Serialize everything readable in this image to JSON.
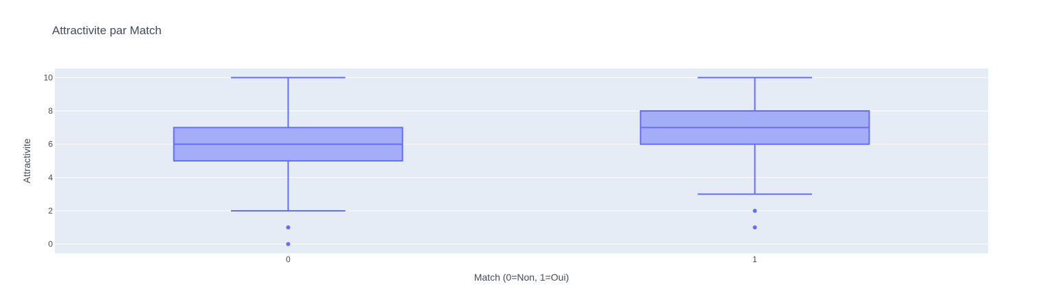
{
  "chart_data": {
    "type": "box",
    "title": "Attractivite par Match",
    "xlabel": "Match (0=Non, 1=Oui)",
    "ylabel": "Attractivite",
    "categories": [
      "0",
      "1"
    ],
    "ylim": [
      -0.55,
      10.55
    ],
    "yticks": [
      0,
      2,
      4,
      6,
      8,
      10
    ],
    "grid": true,
    "legend": "none",
    "series": [
      {
        "boxes": [
          {
            "category": "0",
            "min": 2,
            "q1": 5,
            "median": 6,
            "q3": 7,
            "max": 10,
            "outliers": [
              1,
              0
            ]
          },
          {
            "category": "1",
            "min": 3,
            "q1": 6,
            "median": 7,
            "q3": 8,
            "max": 10,
            "outliers": [
              2,
              1
            ]
          }
        ]
      }
    ],
    "colors": {
      "plot_bg": "#e5ecf6",
      "grid": "#ffffff",
      "line": "#636efa",
      "fill": "rgba(99,110,250,0.5)",
      "text": "#444a5a"
    }
  }
}
